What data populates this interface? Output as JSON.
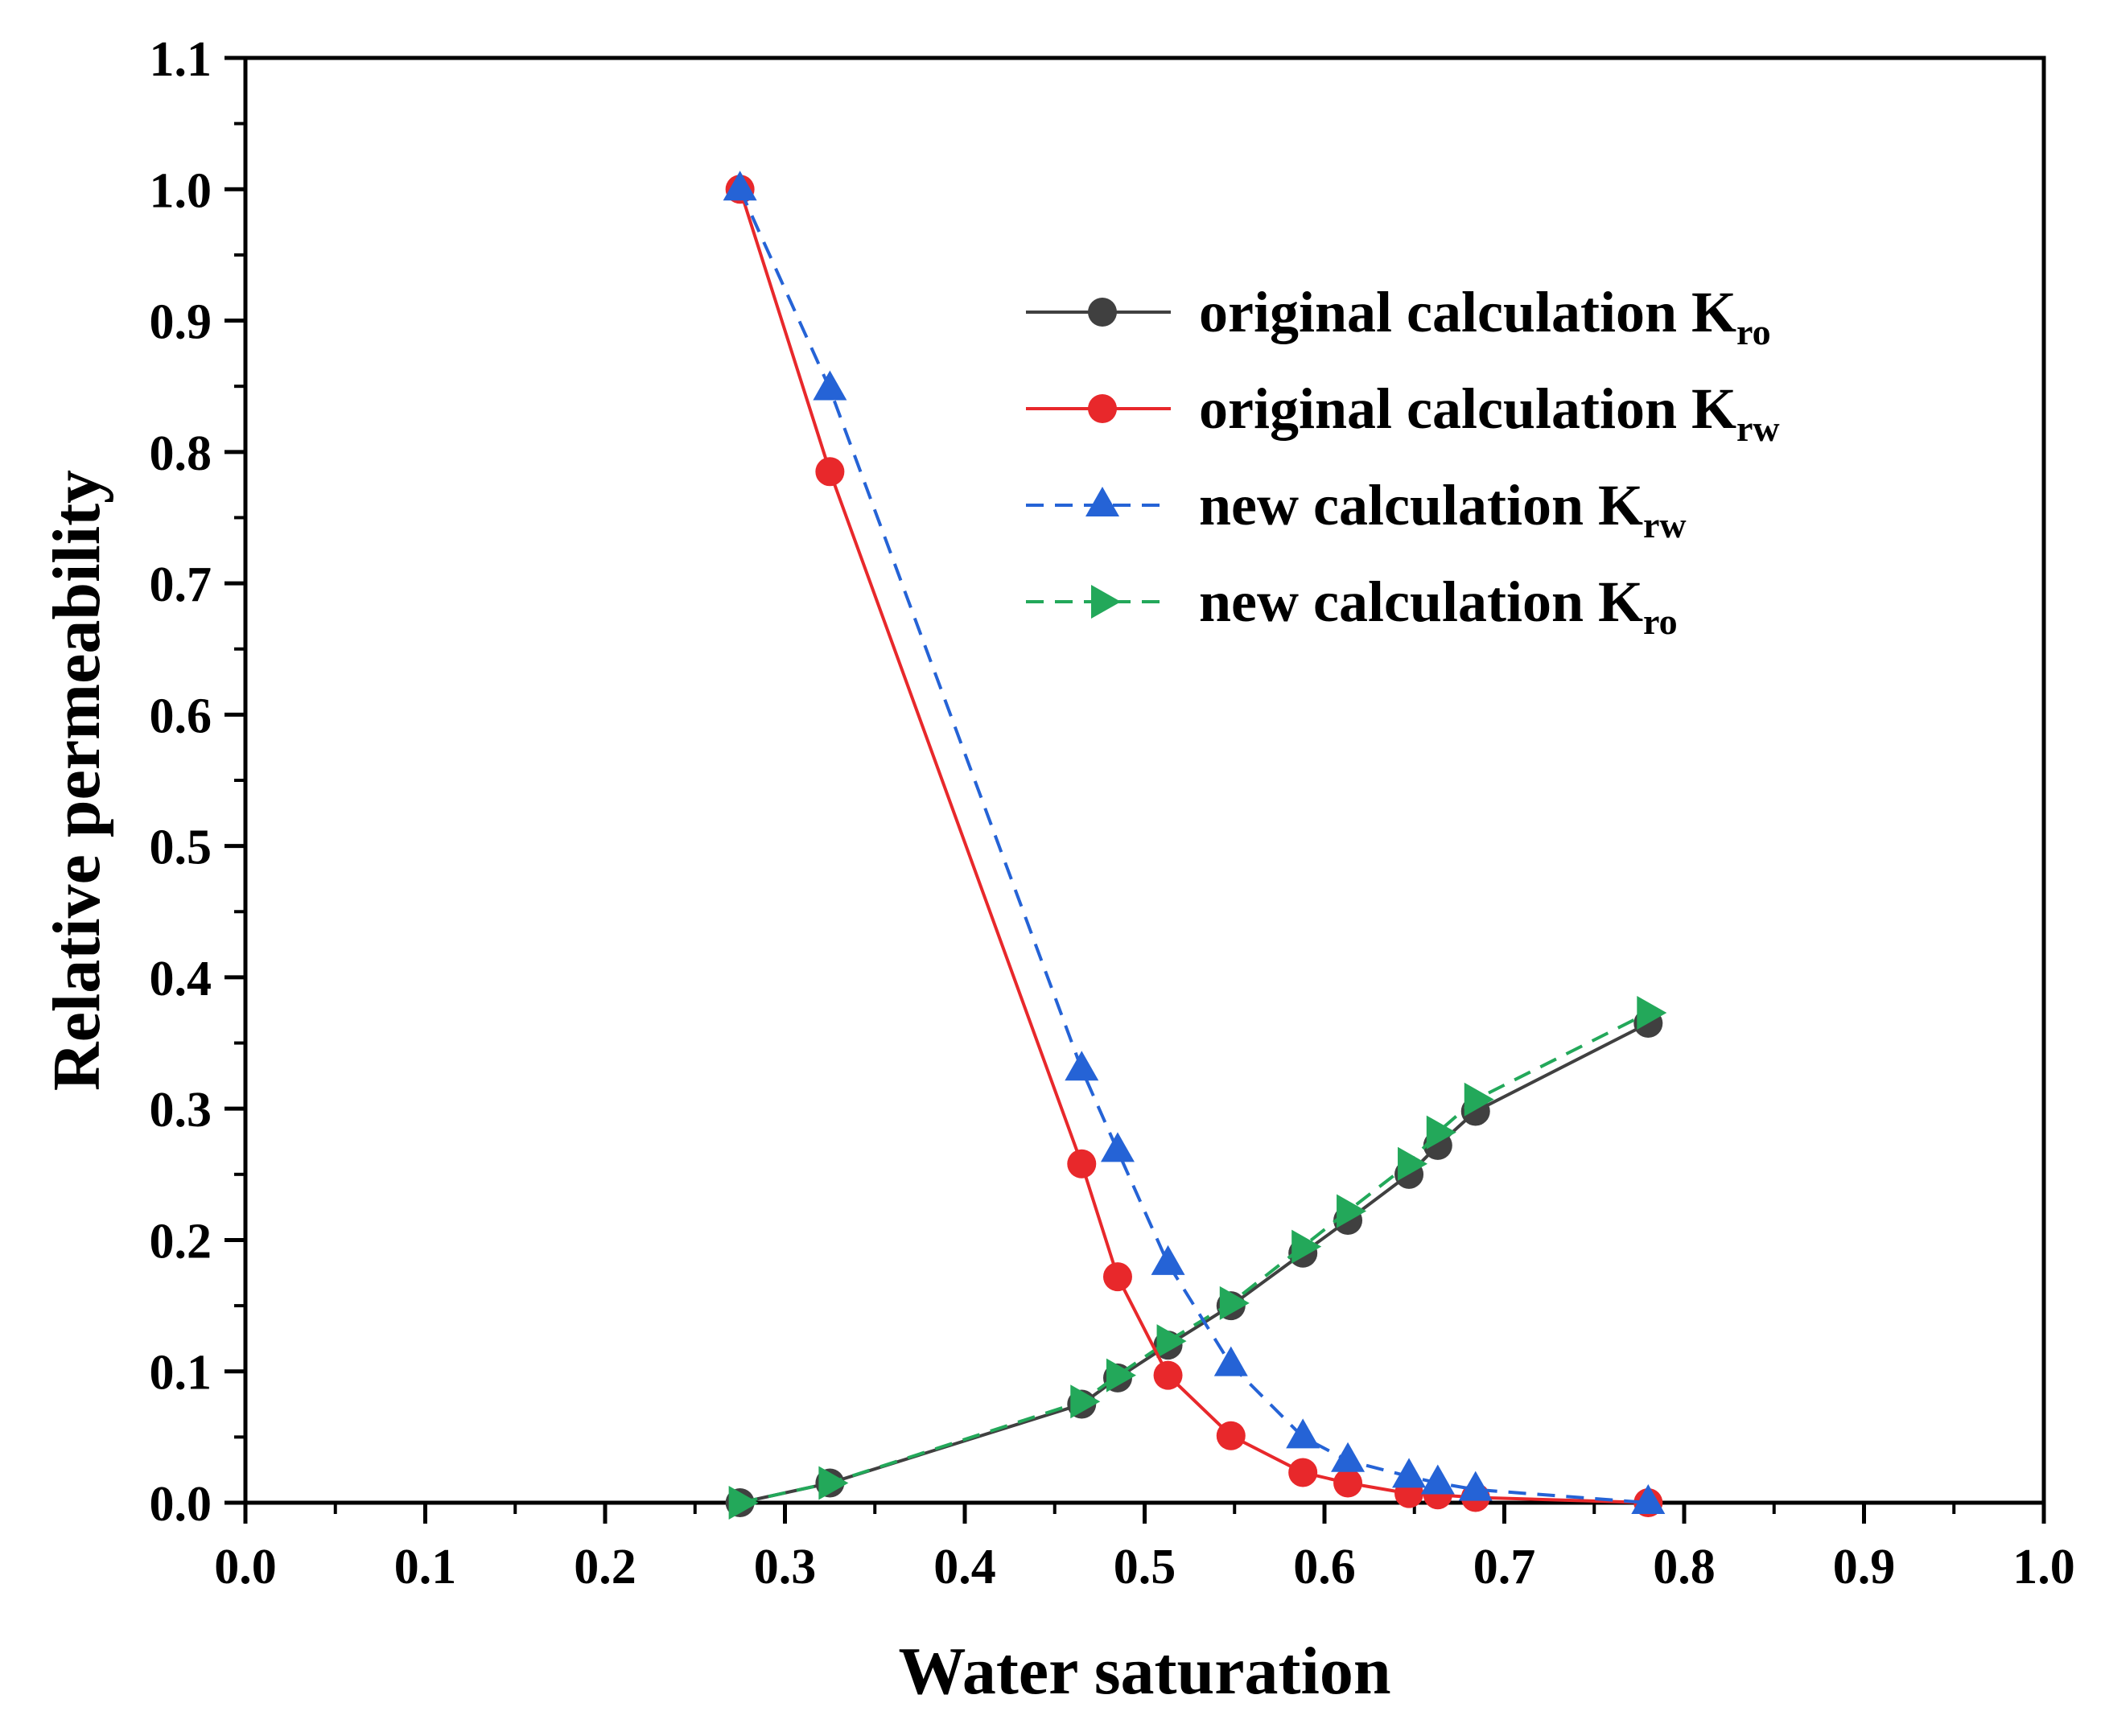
{
  "chart_data": {
    "type": "line",
    "title": "",
    "xlabel": "Water saturation",
    "ylabel": "Relative permeability",
    "xlim": [
      0.0,
      1.0
    ],
    "ylim": [
      0.0,
      1.1
    ],
    "xticks": [
      "0.0",
      "0.1",
      "0.2",
      "0.3",
      "0.4",
      "0.5",
      "0.6",
      "0.7",
      "0.8",
      "0.9",
      "1.0"
    ],
    "yticks": [
      "0.0",
      "0.1",
      "0.2",
      "0.3",
      "0.4",
      "0.5",
      "0.6",
      "0.7",
      "0.8",
      "0.9",
      "1.0",
      "1.1"
    ],
    "grid": false,
    "legend_position": "upper-right",
    "series": [
      {
        "name": "original calculation Kro",
        "label_main": "original calculation K",
        "label_sub": "ro",
        "color": "#404040",
        "marker": "circle",
        "line": "solid",
        "x": [
          0.275,
          0.325,
          0.465,
          0.485,
          0.513,
          0.548,
          0.588,
          0.613,
          0.647,
          0.663,
          0.684,
          0.78
        ],
        "y": [
          0.0,
          0.015,
          0.075,
          0.095,
          0.12,
          0.15,
          0.19,
          0.215,
          0.25,
          0.272,
          0.298,
          0.365
        ]
      },
      {
        "name": "original calculation Krw",
        "label_main": "original calculation K",
        "label_sub": "rw",
        "color": "#e8282b",
        "marker": "circle",
        "line": "solid",
        "x": [
          0.275,
          0.325,
          0.465,
          0.485,
          0.513,
          0.548,
          0.588,
          0.613,
          0.647,
          0.663,
          0.684,
          0.78
        ],
        "y": [
          1.0,
          0.785,
          0.258,
          0.172,
          0.097,
          0.051,
          0.023,
          0.015,
          0.007,
          0.006,
          0.004,
          0.0
        ]
      },
      {
        "name": "new calculation Krw",
        "label_main": "new calculation K",
        "label_sub": "rw",
        "color": "#2563d6",
        "marker": "triangle-up",
        "line": "dashed",
        "x": [
          0.275,
          0.325,
          0.465,
          0.485,
          0.513,
          0.548,
          0.588,
          0.613,
          0.647,
          0.663,
          0.684,
          0.78
        ],
        "y": [
          1.0,
          0.848,
          0.33,
          0.268,
          0.182,
          0.105,
          0.05,
          0.032,
          0.02,
          0.015,
          0.01,
          0.0
        ]
      },
      {
        "name": "new calculation Kro",
        "label_main": "new calculation K",
        "label_sub": "ro",
        "color": "#23a85a",
        "marker": "triangle-right",
        "line": "dashed",
        "x": [
          0.275,
          0.325,
          0.465,
          0.485,
          0.513,
          0.548,
          0.588,
          0.613,
          0.647,
          0.663,
          0.684,
          0.78
        ],
        "y": [
          0.0,
          0.015,
          0.077,
          0.097,
          0.123,
          0.152,
          0.195,
          0.222,
          0.258,
          0.282,
          0.307,
          0.373
        ]
      }
    ]
  }
}
